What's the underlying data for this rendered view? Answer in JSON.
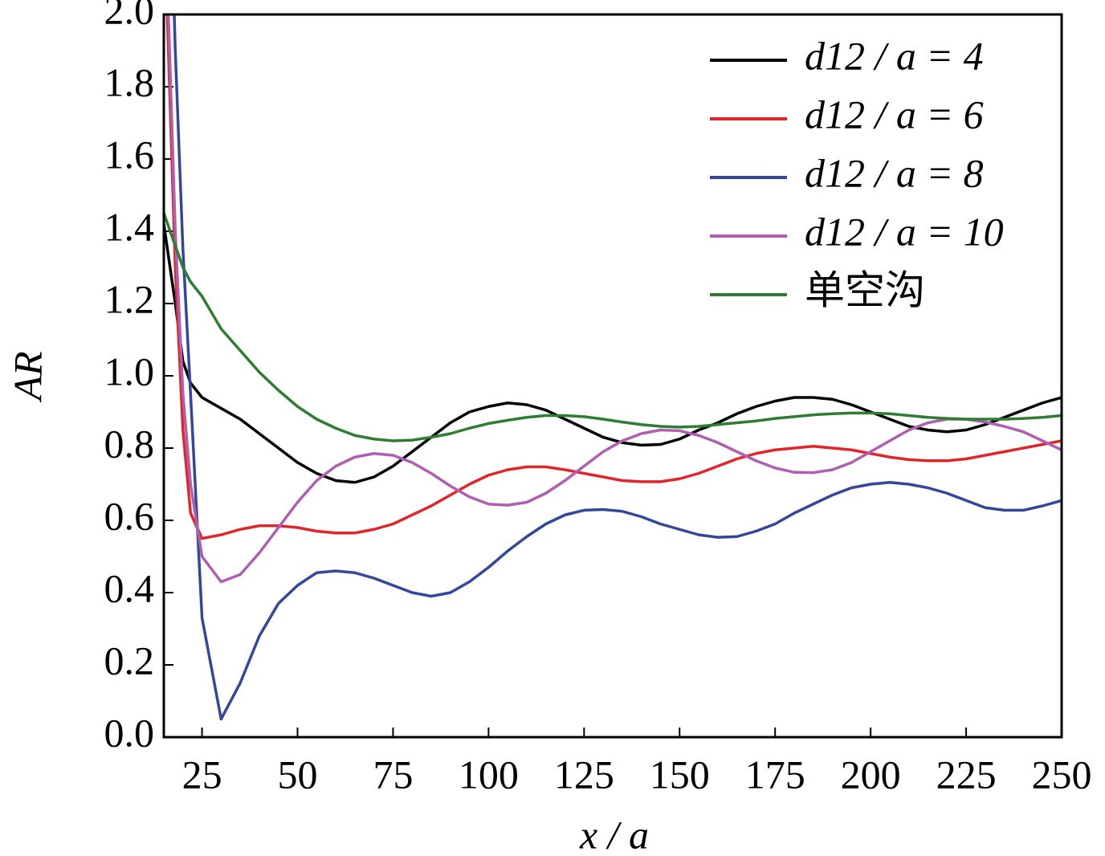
{
  "chart_data": {
    "type": "line",
    "x_label": "x / a",
    "y_label": "AR",
    "x": [
      15,
      18,
      20,
      22,
      25,
      30,
      35,
      40,
      45,
      50,
      55,
      60,
      65,
      70,
      75,
      80,
      85,
      90,
      95,
      100,
      105,
      110,
      115,
      120,
      125,
      130,
      135,
      140,
      145,
      150,
      155,
      160,
      165,
      170,
      175,
      180,
      185,
      190,
      195,
      200,
      205,
      210,
      215,
      220,
      225,
      230,
      235,
      240,
      245,
      250
    ],
    "series": [
      {
        "name": "d12 / a = 4",
        "color": "#000000",
        "values": [
          1.42,
          1.2,
          1.04,
          0.98,
          0.94,
          0.91,
          0.88,
          0.84,
          0.8,
          0.76,
          0.73,
          0.71,
          0.705,
          0.72,
          0.75,
          0.79,
          0.83,
          0.87,
          0.9,
          0.915,
          0.925,
          0.92,
          0.905,
          0.88,
          0.855,
          0.83,
          0.815,
          0.808,
          0.81,
          0.825,
          0.85,
          0.87,
          0.895,
          0.915,
          0.93,
          0.94,
          0.94,
          0.935,
          0.92,
          0.9,
          0.88,
          0.86,
          0.85,
          0.845,
          0.85,
          0.865,
          0.885,
          0.905,
          0.925,
          0.94
        ]
      },
      {
        "name": "d12 / a = 6",
        "color": "#e0262a",
        "values": [
          2.3,
          1.3,
          0.85,
          0.62,
          0.55,
          0.56,
          0.575,
          0.585,
          0.585,
          0.58,
          0.57,
          0.565,
          0.565,
          0.575,
          0.59,
          0.615,
          0.64,
          0.67,
          0.7,
          0.725,
          0.74,
          0.748,
          0.748,
          0.74,
          0.73,
          0.72,
          0.71,
          0.707,
          0.707,
          0.715,
          0.73,
          0.75,
          0.77,
          0.785,
          0.795,
          0.8,
          0.805,
          0.8,
          0.795,
          0.785,
          0.775,
          0.768,
          0.765,
          0.765,
          0.77,
          0.78,
          0.79,
          0.8,
          0.81,
          0.82
        ]
      },
      {
        "name": "d12 / a = 8",
        "color": "#35479a",
        "values": [
          3.0,
          1.9,
          1.35,
          0.95,
          0.33,
          0.05,
          0.15,
          0.28,
          0.37,
          0.42,
          0.455,
          0.46,
          0.455,
          0.44,
          0.42,
          0.4,
          0.39,
          0.4,
          0.43,
          0.47,
          0.515,
          0.555,
          0.59,
          0.615,
          0.628,
          0.63,
          0.625,
          0.61,
          0.59,
          0.575,
          0.56,
          0.553,
          0.555,
          0.57,
          0.59,
          0.62,
          0.645,
          0.67,
          0.69,
          0.7,
          0.705,
          0.7,
          0.69,
          0.675,
          0.655,
          0.635,
          0.628,
          0.628,
          0.64,
          0.655
        ]
      },
      {
        "name": "d12 / a = 10",
        "color": "#b05fb0",
        "values": [
          2.4,
          1.4,
          0.95,
          0.7,
          0.5,
          0.43,
          0.45,
          0.51,
          0.58,
          0.65,
          0.71,
          0.75,
          0.775,
          0.785,
          0.78,
          0.76,
          0.73,
          0.695,
          0.665,
          0.645,
          0.642,
          0.65,
          0.675,
          0.71,
          0.75,
          0.79,
          0.82,
          0.84,
          0.85,
          0.848,
          0.835,
          0.815,
          0.79,
          0.765,
          0.745,
          0.733,
          0.732,
          0.74,
          0.76,
          0.79,
          0.82,
          0.85,
          0.87,
          0.88,
          0.88,
          0.872,
          0.86,
          0.845,
          0.82,
          0.795
        ]
      },
      {
        "name": "单空沟",
        "color": "#2e7d32",
        "values": [
          1.45,
          1.36,
          1.3,
          1.26,
          1.22,
          1.13,
          1.07,
          1.01,
          0.96,
          0.915,
          0.88,
          0.855,
          0.835,
          0.825,
          0.82,
          0.822,
          0.83,
          0.84,
          0.855,
          0.868,
          0.877,
          0.885,
          0.89,
          0.89,
          0.887,
          0.88,
          0.872,
          0.865,
          0.86,
          0.858,
          0.86,
          0.865,
          0.87,
          0.875,
          0.882,
          0.887,
          0.892,
          0.895,
          0.897,
          0.897,
          0.895,
          0.89,
          0.885,
          0.882,
          0.88,
          0.88,
          0.88,
          0.882,
          0.885,
          0.89
        ]
      }
    ],
    "xlim": [
      15,
      250
    ],
    "ylim": [
      0,
      2
    ],
    "xticks": [
      25,
      50,
      75,
      100,
      125,
      150,
      175,
      200,
      225,
      250
    ],
    "yticks": [
      {
        "value": 0,
        "label": "0.0"
      },
      0.2,
      0.4,
      0.6,
      0.8,
      {
        "value": 1,
        "label": "1.0"
      },
      1.2,
      1.4,
      1.6,
      1.8,
      {
        "value": 2,
        "label": "2.0"
      }
    ],
    "legend": "upper right"
  }
}
